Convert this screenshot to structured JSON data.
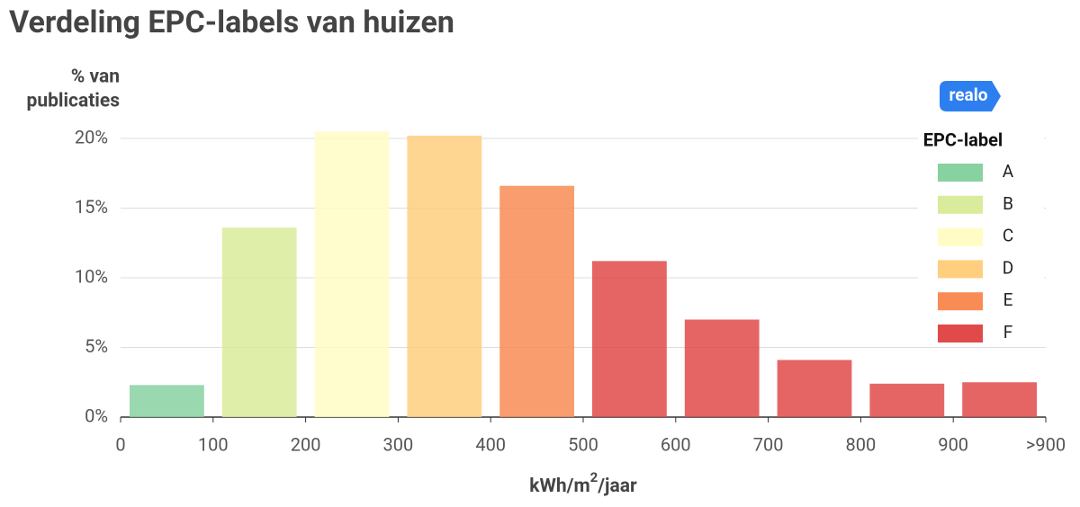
{
  "chart_data": {
    "type": "histogram",
    "title": "Verdeling EPC-labels van huizen",
    "ylabel": [
      "% van",
      "publicaties"
    ],
    "xlabel": [
      "kWh/m",
      "2",
      "/jaar"
    ],
    "logo": "realo",
    "legend_title": "EPC-label",
    "legend": "right",
    "series": [
      {
        "name": "A",
        "color": "#88d1a1"
      },
      {
        "name": "B",
        "color": "#d9ec9b"
      },
      {
        "name": "C",
        "color": "#fffdc5"
      },
      {
        "name": "D",
        "color": "#ffce7f"
      },
      {
        "name": "E",
        "color": "#f98c55"
      },
      {
        "name": "F",
        "color": "#e04a4a"
      }
    ],
    "bins": [
      0,
      100,
      200,
      300,
      400,
      500,
      600,
      700,
      800,
      900,
      1000
    ],
    "values": [
      2.3,
      13.6,
      20.5,
      20.2,
      16.6,
      11.2,
      7.0,
      4.1,
      2.4,
      2.5
    ],
    "colors": [
      "#88d1a1",
      "#d9ec9b",
      "#fffdc5",
      "#ffce7f",
      "#f98c55",
      "#e04a4a",
      "#e04a4a",
      "#e04a4a",
      "#e04a4a",
      "#e04a4a"
    ],
    "xlim": [
      0,
      1000
    ],
    "xticks": [
      0,
      100,
      200,
      300,
      400,
      500,
      600,
      700,
      800,
      900,
      {
        "value": 1000,
        "label": ">900"
      }
    ],
    "ylim": [
      0,
      21
    ],
    "yticks": [
      {
        "value": 0,
        "label": "0%"
      },
      {
        "value": 5,
        "label": "5%"
      },
      {
        "value": 10,
        "label": "10%"
      },
      {
        "value": 15,
        "label": "15%"
      },
      {
        "value": 20,
        "label": "20%"
      }
    ],
    "grid": true
  }
}
